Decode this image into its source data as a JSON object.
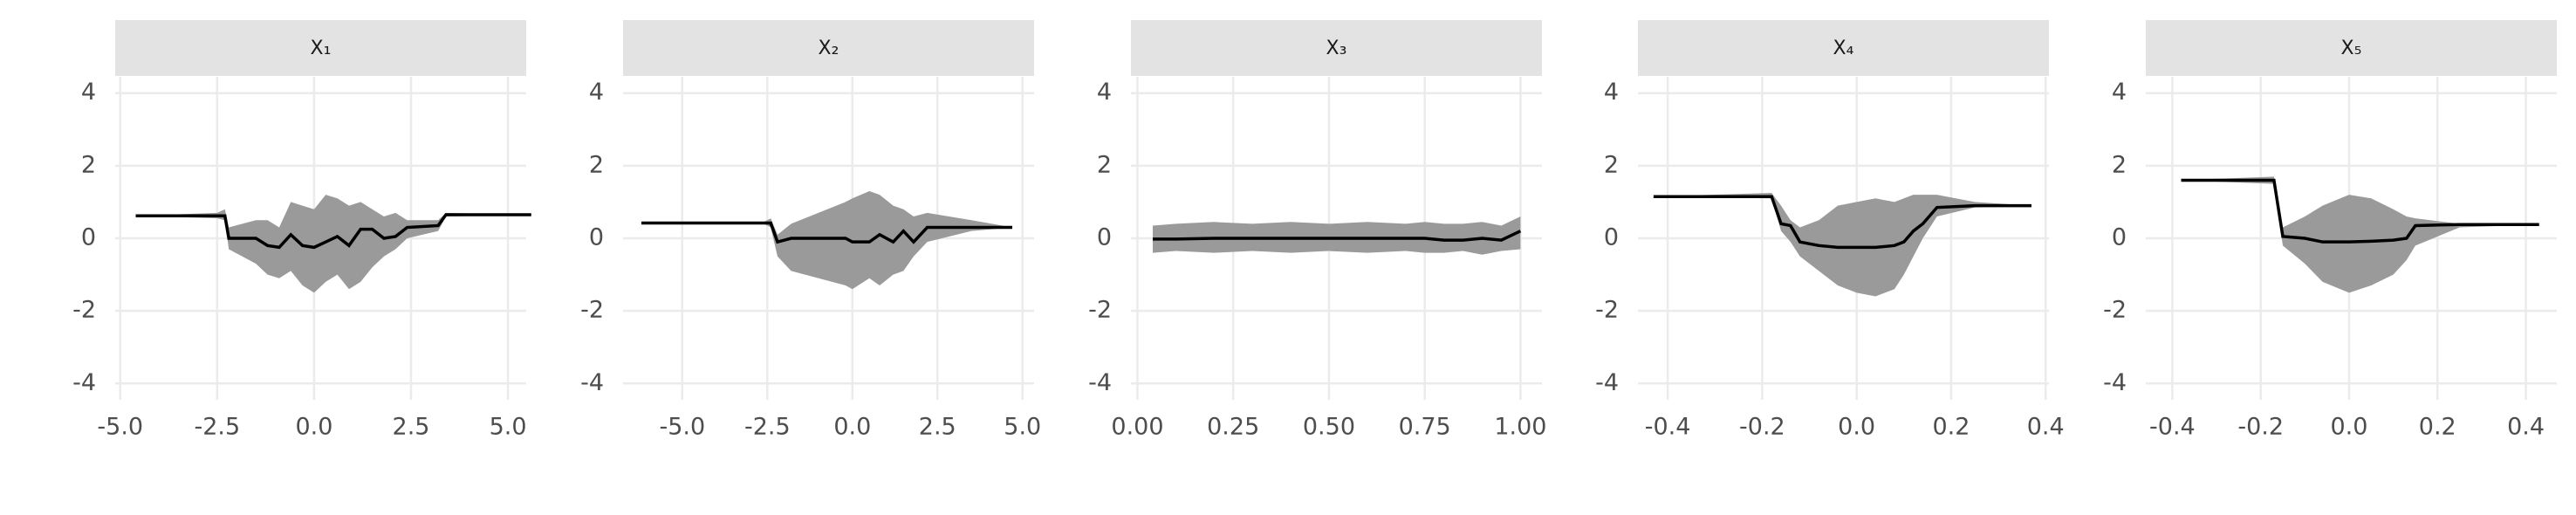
{
  "chart_data": [
    {
      "type": "line",
      "title": "X₁",
      "x": [
        -4.6,
        -2.5,
        -2.3,
        -2.2,
        -1.5,
        -1.2,
        -0.9,
        -0.6,
        -0.3,
        0,
        0.3,
        0.6,
        0.9,
        1.2,
        1.5,
        1.8,
        2.1,
        2.4,
        3.2,
        3.4,
        5.6
      ],
      "series": [
        {
          "color": "#000000",
          "band_color": "#9a9a9a",
          "values": [
            0.62,
            0.62,
            0.62,
            0,
            0,
            -0.2,
            -0.25,
            0.1,
            -0.2,
            -0.25,
            -0.1,
            0.05,
            -0.2,
            0.25,
            0.25,
            0.0,
            0.05,
            0.3,
            0.35,
            0.65,
            0.65
          ],
          "upper": [
            0.62,
            0.7,
            0.8,
            0.3,
            0.5,
            0.5,
            0.3,
            1.0,
            0.9,
            0.8,
            1.2,
            1.1,
            0.9,
            1.0,
            0.8,
            0.6,
            0.7,
            0.5,
            0.5,
            0.7,
            0.65
          ],
          "lower": [
            0.62,
            0.55,
            0.5,
            -0.3,
            -0.7,
            -1.0,
            -1.1,
            -0.9,
            -1.3,
            -1.5,
            -1.2,
            -1.0,
            -1.4,
            -1.2,
            -0.8,
            -0.5,
            -0.3,
            0.0,
            0.2,
            0.6,
            0.65
          ]
        }
      ],
      "xlim": [
        -5.13,
        5.47
      ],
      "xticks": [
        {
          "value": -5,
          "label": "-5.0"
        },
        -2.5,
        {
          "value": 0,
          "label": "0.0"
        },
        2.5,
        {
          "value": 5,
          "label": "5.0"
        }
      ],
      "ylim": [
        -4.45,
        4.45
      ],
      "yticks": [
        -4,
        -2,
        0,
        2,
        4
      ],
      "grid": true
    },
    {
      "type": "line",
      "title": "X₂",
      "x": [
        -6.2,
        -2.6,
        -2.4,
        -2.2,
        -1.8,
        -0.2,
        0,
        0.5,
        0.8,
        1.2,
        1.5,
        1.8,
        2.2,
        3.5,
        4.7
      ],
      "series": [
        {
          "color": "#000000",
          "band_color": "#9a9a9a",
          "values": [
            0.42,
            0.42,
            0.42,
            -0.1,
            0,
            0,
            -0.1,
            -0.1,
            0.1,
            -0.1,
            0.2,
            -0.1,
            0.3,
            0.3,
            0.3
          ],
          "upper": [
            0.42,
            0.45,
            0.55,
            0.1,
            0.4,
            1.0,
            1.1,
            1.3,
            1.2,
            0.9,
            0.8,
            0.6,
            0.7,
            0.5,
            0.3
          ],
          "lower": [
            0.42,
            0.4,
            0.3,
            -0.5,
            -0.9,
            -1.3,
            -1.4,
            -1.1,
            -1.3,
            -1.0,
            -0.9,
            -0.5,
            -0.1,
            0.2,
            0.3
          ]
        }
      ],
      "xlim": [
        -6.74,
        5.34
      ],
      "xticks": [
        {
          "value": -5,
          "label": "-5.0"
        },
        -2.5,
        {
          "value": 0,
          "label": "0.0"
        },
        2.5,
        {
          "value": 5,
          "label": "5.0"
        }
      ],
      "ylim": [
        -4.45,
        4.45
      ],
      "yticks": [
        -4,
        -2,
        0,
        2,
        4
      ],
      "grid": true
    },
    {
      "type": "line",
      "title": "X₃",
      "x": [
        0.04,
        0.1,
        0.2,
        0.3,
        0.4,
        0.5,
        0.6,
        0.7,
        0.75,
        0.8,
        0.85,
        0.9,
        0.95,
        1.0
      ],
      "series": [
        {
          "color": "#000000",
          "band_color": "#9a9a9a",
          "values": [
            -0.02,
            -0.02,
            0,
            0,
            0,
            0,
            0,
            0,
            0,
            -0.05,
            -0.05,
            0.0,
            -0.05,
            0.2
          ],
          "upper": [
            0.35,
            0.4,
            0.45,
            0.4,
            0.45,
            0.4,
            0.45,
            0.4,
            0.45,
            0.4,
            0.4,
            0.45,
            0.35,
            0.6
          ],
          "lower": [
            -0.4,
            -0.35,
            -0.4,
            -0.35,
            -0.4,
            -0.35,
            -0.4,
            -0.35,
            -0.4,
            -0.4,
            -0.35,
            -0.45,
            -0.35,
            -0.3
          ]
        }
      ],
      "xlim": [
        -0.017,
        1.056
      ],
      "xticks": [
        {
          "value": 0,
          "label": "0.00"
        },
        0.25,
        {
          "value": 0.5,
          "label": "0.50"
        },
        0.75,
        {
          "value": 1,
          "label": "1.00"
        }
      ],
      "ylim": [
        -4.45,
        4.45
      ],
      "yticks": [
        -4,
        -2,
        0,
        2,
        4
      ],
      "grid": true
    },
    {
      "type": "line",
      "title": "X₄",
      "x": [
        -0.43,
        -0.18,
        -0.16,
        -0.14,
        -0.12,
        -0.08,
        -0.04,
        0,
        0.04,
        0.08,
        0.1,
        0.12,
        0.14,
        0.17,
        0.25,
        0.37
      ],
      "series": [
        {
          "color": "#000000",
          "band_color": "#9a9a9a",
          "values": [
            1.15,
            1.15,
            0.4,
            0.35,
            -0.1,
            -0.2,
            -0.25,
            -0.25,
            -0.25,
            -0.2,
            -0.1,
            0.2,
            0.4,
            0.85,
            0.9,
            0.9
          ],
          "upper": [
            1.15,
            1.25,
            0.9,
            0.5,
            0.3,
            0.5,
            0.9,
            1.0,
            1.1,
            1.0,
            1.1,
            1.2,
            1.2,
            1.2,
            1.0,
            0.9
          ],
          "lower": [
            1.15,
            1.1,
            0.2,
            -0.1,
            -0.5,
            -0.9,
            -1.3,
            -1.5,
            -1.6,
            -1.4,
            -1.0,
            -0.5,
            0.0,
            0.6,
            0.85,
            0.9
          ]
        }
      ],
      "xlim": [
        -0.463,
        0.407
      ],
      "xticks": [
        -0.4,
        -0.2,
        {
          "value": 0,
          "label": "0.0"
        },
        0.2,
        0.4
      ],
      "ylim": [
        -4.45,
        4.45
      ],
      "yticks": [
        -4,
        -2,
        0,
        2,
        4
      ],
      "grid": true
    },
    {
      "type": "line",
      "title": "X₅",
      "x": [
        -0.38,
        -0.17,
        -0.15,
        -0.1,
        -0.06,
        0,
        0.05,
        0.1,
        0.13,
        0.15,
        0.25,
        0.43
      ],
      "series": [
        {
          "color": "#000000",
          "band_color": "#9a9a9a",
          "values": [
            1.6,
            1.6,
            0.05,
            0,
            -0.1,
            -0.1,
            -0.08,
            -0.05,
            0,
            0.35,
            0.38,
            0.38
          ],
          "upper": [
            1.6,
            1.7,
            0.3,
            0.6,
            0.9,
            1.2,
            1.1,
            0.8,
            0.6,
            0.55,
            0.4,
            0.38
          ],
          "lower": [
            1.6,
            1.5,
            -0.2,
            -0.7,
            -1.2,
            -1.5,
            -1.3,
            -1.0,
            -0.6,
            -0.2,
            0.3,
            0.38
          ]
        }
      ],
      "xlim": [
        -0.46,
        0.47
      ],
      "xticks": [
        -0.4,
        -0.2,
        {
          "value": 0,
          "label": "0.0"
        },
        0.2,
        0.4
      ],
      "ylim": [
        -4.45,
        4.45
      ],
      "yticks": [
        -4,
        -2,
        0,
        2,
        4
      ],
      "grid": true
    }
  ]
}
